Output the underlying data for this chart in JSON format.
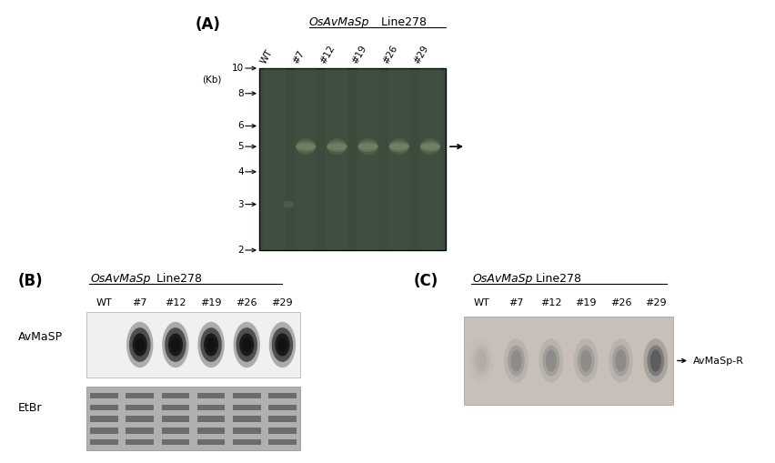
{
  "background_color": "#ffffff",
  "panel_A": {
    "label": "(A)",
    "title_italic": "OsAvMaSp",
    "title_normal": " Line278",
    "kb_label": "(Kb)",
    "ladder_values": [
      10,
      8,
      6,
      5,
      4,
      3,
      2
    ],
    "lane_labels": [
      "WT",
      "#7",
      "#12",
      "#19",
      "#26",
      "#29"
    ],
    "gel_bg": "#3c4c3c",
    "band_color": "#7a8a6a",
    "spot_color": "#5a6a5a"
  },
  "panel_B": {
    "label": "(B)",
    "title_italic": "OsAvMaSp",
    "title_normal": " Line278",
    "lane_labels": [
      "WT",
      "#7",
      "#12",
      "#19",
      "#26",
      "#29"
    ],
    "row_label_avmasp": "AvMaSP",
    "row_label_etbr": "EtBr",
    "blot_bg": "#e8e8e8",
    "band_color": "#111111",
    "etbr_bg": "#b0b0b0",
    "etbr_band_color": "#606060"
  },
  "panel_C": {
    "label": "(C)",
    "title_italic": "OsAvMaSp",
    "title_normal": " Line278",
    "lane_labels": [
      "WT",
      "#7",
      "#12",
      "#19",
      "#26",
      "#29"
    ],
    "arrow_label": "AvMaSp-R",
    "gel_bg": "#c8c0b8",
    "band_color": "#888888"
  }
}
